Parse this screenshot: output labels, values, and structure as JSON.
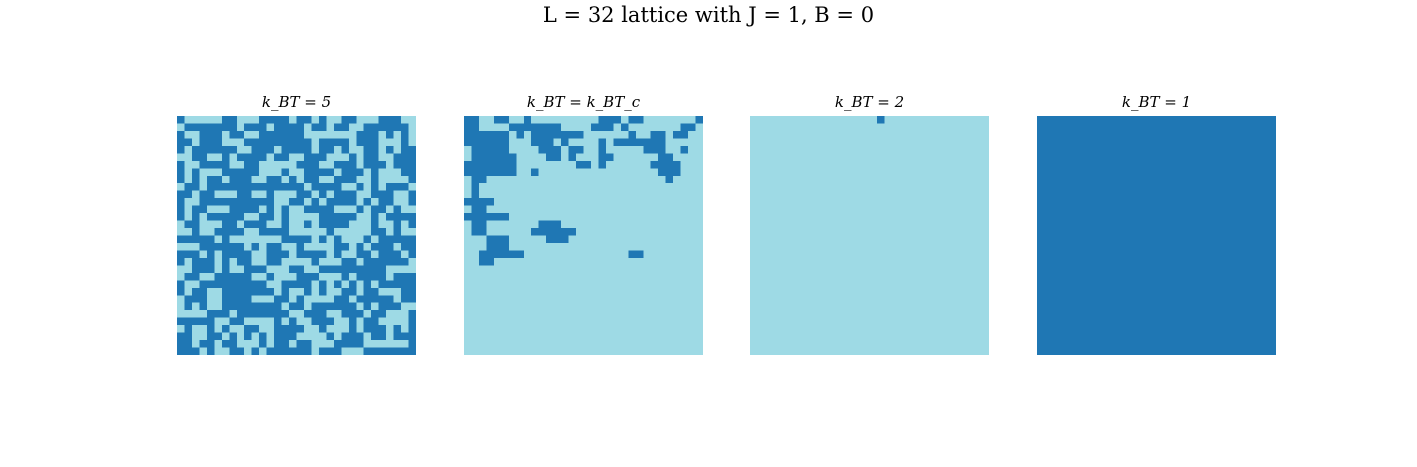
{
  "chart_data": {
    "type": "heatmap",
    "title": "L = 32 lattice with J = 1, B = 0",
    "colors": {
      "spin_up": "#1f77b4",
      "spin_down": "#9edae5"
    },
    "L": 32,
    "panels": [
      {
        "title": "k_BT = 5",
        "grid": [
          "10000011000111101101001100011100",
          "01111111011101111011011001111110",
          "10011101100111111000000011101010",
          "11011100011111111101111011100010",
          "10111111001110111101101001101011",
          "00110010111101100111000101100111",
          "10011110011000001110011101110111",
          "10100011111000100111101110100011",
          "10101101110011010110011100100001",
          "01101111111111111011110010101110",
          "11011000110010001101011100111001",
          "10011111111110011010111101011001",
          "10110001111010100111100010110100",
          "10101111100110100001111100101111",
          "01100011011100100101111000100101",
          "00100111100111100000100000110100",
          "11111010000000111101010001011111",
          "00011111101011001000011010111011",
          "11101011110011101111010011011101",
          "10111010110011000010001101111110",
          "00111010011100011001111111110000",
          "01100111110010001110001011110111",
          "10011111111100111101010101011111",
          "10110011111110100101001101100011",
          "01110011110001101000011011111011",
          "01010011111111011011111101011100",
          "00001110111111100111001110110001",
          "11111001100001010011100101100001",
          "01001010011001111001000101110101",
          "11001101010101110000101110110111",
          "11011011000101101100011110000001",
          "11101001101011111101110001111111"
        ]
      },
      {
        "title": "k_BT = k_BT_c",
        "grid": [
          "11001100100000000011101100000001",
          "11000011111110000111010000000110",
          "11111101011111110000001001101100",
          "11111100011101000010111111100000",
          "01111100001110110010000011100100",
          "01111110000110100011000000110000",
          "11111110000000011010000001111000",
          "11111110010000000000000000111000",
          "01100000000000000000000000010000",
          "01000000000000000000000000000000",
          "01000000000000000000000000000000",
          "11110000000000000000000000000000",
          "01100000000000000000000000000000",
          "11111100000000000000000000000000",
          "01100000001110000000000000000000",
          "01100000011111100000000000000000",
          "00011100000111000000000000000000",
          "00011100000000000000000000000000",
          "00111111000000000000001100000000",
          "00110000000000000000000000000000",
          "00000000000000000000000000000000",
          "00000000000000000000000000000000",
          "00000000000000000000000000000000",
          "00000000000000000000000000000000",
          "00000000000000000000000000000000",
          "00000000000000000000000000000000",
          "00000000000000000000000000000000",
          "00000000000000000000000000000000",
          "00000000000000000000000000000000",
          "00000000000000000000000000000000",
          "00000000000000000000000000000000",
          "00000000000000000000000000000000"
        ]
      },
      {
        "title": "k_BT = 2",
        "grid": [
          "00000000000000000100000000000000",
          "00000000000000000000000000000000",
          "00000000000000000000000000000000",
          "00000000000000000000000000000000",
          "00000000000000000000000000000000",
          "00000000000000000000000000000000",
          "00000000000000000000000000000000",
          "00000000000000000000000000000000",
          "00000000000000000000000000000000",
          "00000000000000000000000000000000",
          "00000000000000000000000000000000",
          "00000000000000000000000000000000",
          "00000000000000000000000000000000",
          "00000000000000000000000000000000",
          "00000000000000000000000000000000",
          "00000000000000000000000000000000",
          "00000000000000000000000000000000",
          "00000000000000000000000000000000",
          "00000000000000000000000000000000",
          "00000000000000000000000000000000",
          "00000000000000000000000000000000",
          "00000000000000000000000000000000",
          "00000000000000000000000000000000",
          "00000000000000000000000000000000",
          "00000000000000000000000000000000",
          "00000000000000000000000000000000",
          "00000000000000000000000000000000",
          "00000000000000000000000000000000",
          "00000000000000000000000000000000",
          "00000000000000000000000000000000",
          "00000000000000000000000000000000",
          "00000000000000000000000000000000"
        ]
      },
      {
        "title": "k_BT = 1",
        "grid": [
          "11111111111111111111111111111111",
          "11111111111111111111111111111111",
          "11111111111111111111111111111111",
          "11111111111111111111111111111111",
          "11111111111111111111111111111111",
          "11111111111111111111111111111111",
          "11111111111111111111111111111111",
          "11111111111111111111111111111111",
          "11111111111111111111111111111111",
          "11111111111111111111111111111111",
          "11111111111111111111111111111111",
          "11111111111111111111111111111111",
          "11111111111111111111111111111111",
          "11111111111111111111111111111111",
          "11111111111111111111111111111111",
          "11111111111111111111111111111111",
          "11111111111111111111111111111111",
          "11111111111111111111111111111111",
          "11111111111111111111111111111111",
          "11111111111111111111111111111111",
          "11111111111111111111111111111111",
          "11111111111111111111111111111111",
          "11111111111111111111111111111111",
          "11111111111111111111111111111111",
          "11111111111111111111111111111111",
          "11111111111111111111111111111111",
          "11111111111111111111111111111111",
          "11111111111111111111111111111111",
          "11111111111111111111111111111111",
          "11111111111111111111111111111111",
          "11111111111111111111111111111111",
          "11111111111111111111111111111111"
        ]
      }
    ]
  }
}
